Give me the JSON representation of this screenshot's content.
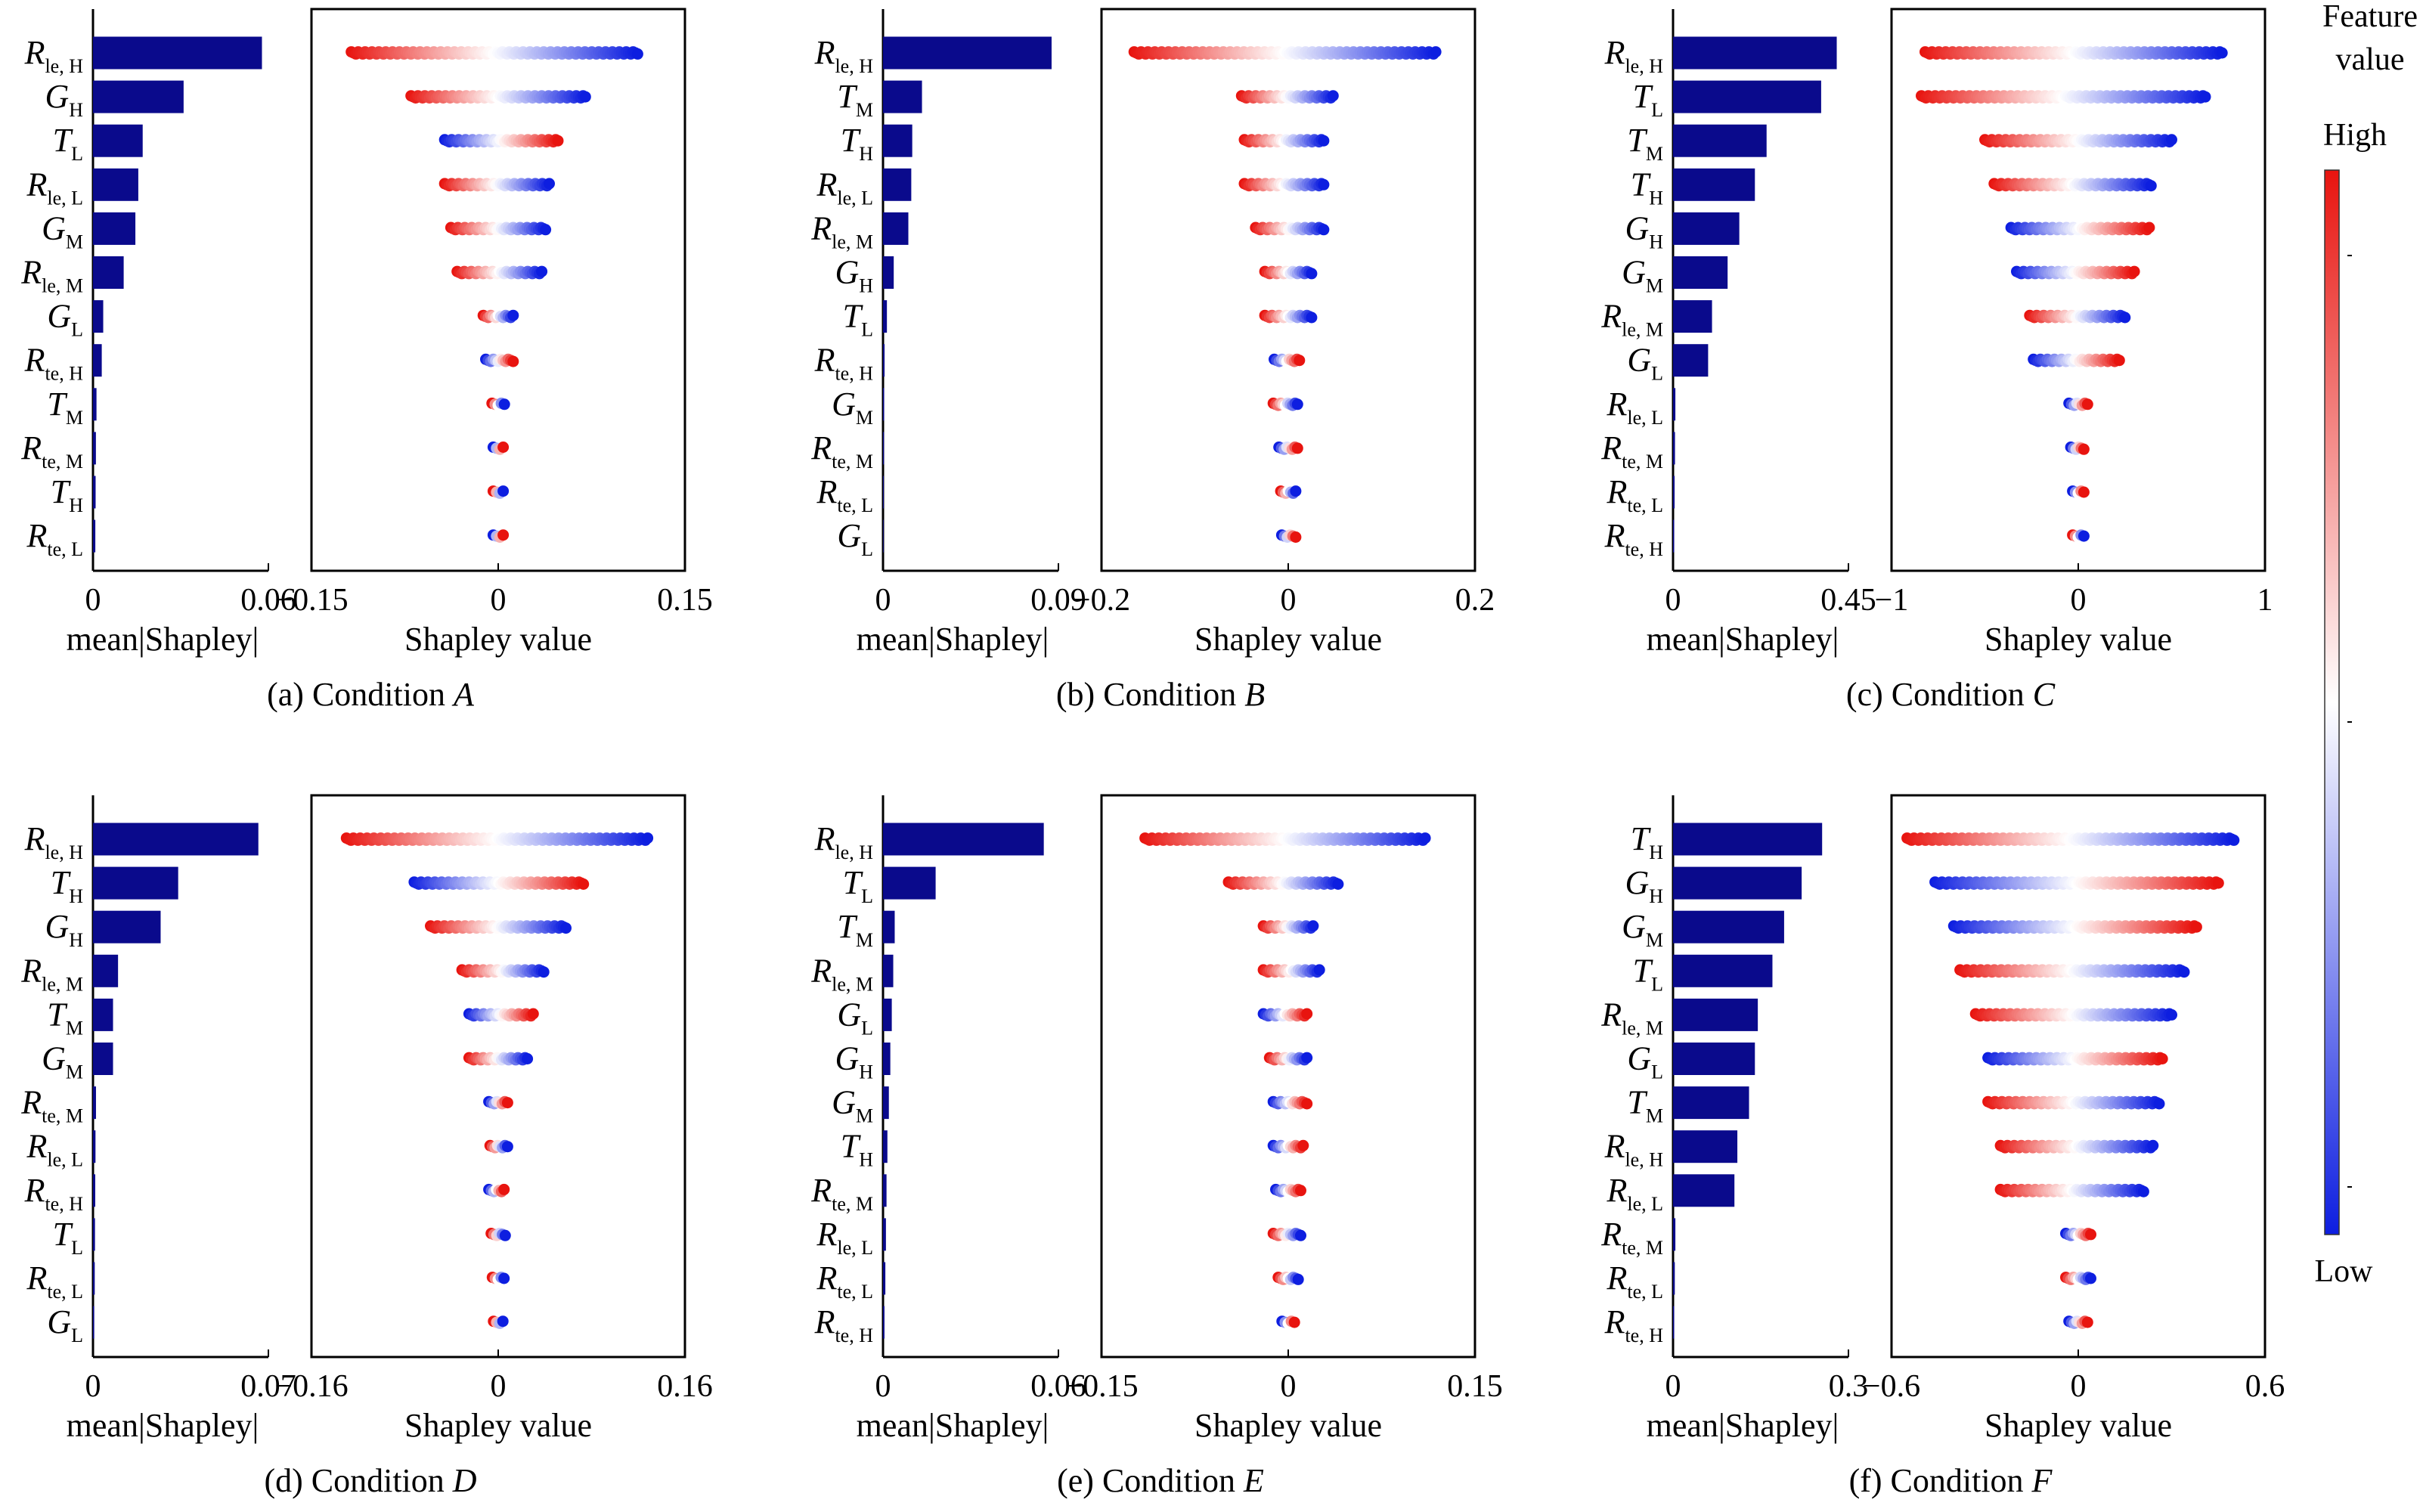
{
  "figure": {
    "colorbar": {
      "title_line1": "Feature",
      "title_line2": "value",
      "high_label": "High",
      "low_label": "Low",
      "high_color": "#e8140f",
      "mid_color": "#ffffff",
      "low_color": "#0d1ee0"
    },
    "bar_color": "#0a0a8c"
  },
  "chart_data": [
    {
      "type": "bar",
      "panel": "a",
      "caption_prefix": "(a) Condition ",
      "caption_letter": "A",
      "bar_xlabel": "mean|Shapley|",
      "bar_xlim": [
        0,
        0.06
      ],
      "bar_xticks": [
        "0",
        "0.06"
      ],
      "scatter_xlabel": "Shapley value",
      "scatter_xlim": [
        -0.15,
        0.15
      ],
      "scatter_xticks": [
        {
          "v": -0.15,
          "label": "−0.15"
        },
        {
          "v": 0,
          "label": "0"
        },
        {
          "v": 0.15,
          "label": "0.15"
        }
      ],
      "features": [
        {
          "base": "R",
          "sub": "le, H",
          "mean_abs": 0.0578,
          "range": [
            -0.118,
            0.112
          ],
          "order": "hl"
        },
        {
          "base": "G",
          "sub": "H",
          "mean_abs": 0.031,
          "range": [
            -0.07,
            0.07
          ],
          "order": "hl"
        },
        {
          "base": "T",
          "sub": "L",
          "mean_abs": 0.017,
          "range": [
            -0.043,
            0.048
          ],
          "order": "lh"
        },
        {
          "base": "R",
          "sub": "le, L",
          "mean_abs": 0.0155,
          "range": [
            -0.043,
            0.041
          ],
          "order": "hl"
        },
        {
          "base": "G",
          "sub": "M",
          "mean_abs": 0.0145,
          "range": [
            -0.038,
            0.038
          ],
          "order": "hl"
        },
        {
          "base": "R",
          "sub": "le, M",
          "mean_abs": 0.0105,
          "range": [
            -0.033,
            0.035
          ],
          "order": "hl"
        },
        {
          "base": "G",
          "sub": "L",
          "mean_abs": 0.0035,
          "range": [
            -0.012,
            0.012
          ],
          "order": "hl"
        },
        {
          "base": "R",
          "sub": "te, H",
          "mean_abs": 0.003,
          "range": [
            -0.01,
            0.012
          ],
          "order": "lh"
        },
        {
          "base": "T",
          "sub": "M",
          "mean_abs": 0.0012,
          "range": [
            -0.005,
            0.005
          ],
          "order": "hl"
        },
        {
          "base": "R",
          "sub": "te, M",
          "mean_abs": 0.001,
          "range": [
            -0.004,
            0.004
          ],
          "order": "lh"
        },
        {
          "base": "T",
          "sub": "H",
          "mean_abs": 0.0009,
          "range": [
            -0.004,
            0.004
          ],
          "order": "hl"
        },
        {
          "base": "R",
          "sub": "te, L",
          "mean_abs": 0.0008,
          "range": [
            -0.004,
            0.004
          ],
          "order": "lh"
        }
      ]
    },
    {
      "type": "bar",
      "panel": "b",
      "caption_prefix": "(b) Condition ",
      "caption_letter": "B",
      "bar_xlabel": "mean|Shapley|",
      "bar_xlim": [
        0,
        0.09
      ],
      "bar_xticks": [
        "0",
        "0.09"
      ],
      "scatter_xlabel": "Shapley value",
      "scatter_xlim": [
        -0.2,
        0.2
      ],
      "scatter_xticks": [
        {
          "v": -0.2,
          "label": "−0.2"
        },
        {
          "v": 0,
          "label": "0"
        },
        {
          "v": 0.2,
          "label": "0.2"
        }
      ],
      "features": [
        {
          "base": "R",
          "sub": "le, H",
          "mean_abs": 0.0865,
          "range": [
            -0.165,
            0.158
          ],
          "order": "hl"
        },
        {
          "base": "T",
          "sub": "M",
          "mean_abs": 0.02,
          "range": [
            -0.05,
            0.048
          ],
          "order": "hl"
        },
        {
          "base": "T",
          "sub": "H",
          "mean_abs": 0.015,
          "range": [
            -0.047,
            0.038
          ],
          "order": "hl"
        },
        {
          "base": "R",
          "sub": "le, L",
          "mean_abs": 0.0145,
          "range": [
            -0.047,
            0.038
          ],
          "order": "hl"
        },
        {
          "base": "R",
          "sub": "le, M",
          "mean_abs": 0.013,
          "range": [
            -0.035,
            0.038
          ],
          "order": "hl"
        },
        {
          "base": "G",
          "sub": "H",
          "mean_abs": 0.0055,
          "range": [
            -0.025,
            0.025
          ],
          "order": "hl"
        },
        {
          "base": "T",
          "sub": "L",
          "mean_abs": 0.002,
          "range": [
            -0.025,
            0.025
          ],
          "order": "hl"
        },
        {
          "base": "R",
          "sub": "te, H",
          "mean_abs": 0.0008,
          "range": [
            -0.015,
            0.012
          ],
          "order": "lh"
        },
        {
          "base": "G",
          "sub": "M",
          "mean_abs": 0.0006,
          "range": [
            -0.016,
            0.01
          ],
          "order": "hl"
        },
        {
          "base": "R",
          "sub": "te, M",
          "mean_abs": 0.0005,
          "range": [
            -0.01,
            0.01
          ],
          "order": "lh"
        },
        {
          "base": "R",
          "sub": "te, L",
          "mean_abs": 0.0004,
          "range": [
            -0.008,
            0.008
          ],
          "order": "hl"
        },
        {
          "base": "G",
          "sub": "L",
          "mean_abs": 0.0003,
          "range": [
            -0.007,
            0.008
          ],
          "order": "lh"
        }
      ]
    },
    {
      "type": "bar",
      "panel": "c",
      "caption_prefix": "(c) Condition ",
      "caption_letter": "C",
      "bar_xlabel": "mean|Shapley|",
      "bar_xlim": [
        0,
        0.45
      ],
      "bar_xticks": [
        "0",
        "0.45"
      ],
      "scatter_xlabel": "Shapley value",
      "scatter_xlim": [
        -1,
        1
      ],
      "scatter_xticks": [
        {
          "v": -1,
          "label": "−1"
        },
        {
          "v": 0,
          "label": "0"
        },
        {
          "v": 1,
          "label": "1"
        }
      ],
      "features": [
        {
          "base": "R",
          "sub": "le, H",
          "mean_abs": 0.42,
          "range": [
            -0.82,
            0.77
          ],
          "order": "hl"
        },
        {
          "base": "T",
          "sub": "L",
          "mean_abs": 0.38,
          "range": [
            -0.84,
            0.68
          ],
          "order": "hl"
        },
        {
          "base": "T",
          "sub": "M",
          "mean_abs": 0.24,
          "range": [
            -0.5,
            0.5
          ],
          "order": "hl"
        },
        {
          "base": "T",
          "sub": "H",
          "mean_abs": 0.21,
          "range": [
            -0.45,
            0.39
          ],
          "order": "hl"
        },
        {
          "base": "G",
          "sub": "H",
          "mean_abs": 0.17,
          "range": [
            -0.36,
            0.38
          ],
          "order": "lh"
        },
        {
          "base": "G",
          "sub": "M",
          "mean_abs": 0.14,
          "range": [
            -0.33,
            0.3
          ],
          "order": "lh"
        },
        {
          "base": "R",
          "sub": "le, M",
          "mean_abs": 0.1,
          "range": [
            -0.26,
            0.25
          ],
          "order": "hl"
        },
        {
          "base": "G",
          "sub": "L",
          "mean_abs": 0.09,
          "range": [
            -0.24,
            0.22
          ],
          "order": "lh"
        },
        {
          "base": "R",
          "sub": "le, L",
          "mean_abs": 0.006,
          "range": [
            -0.05,
            0.05
          ],
          "order": "lh"
        },
        {
          "base": "R",
          "sub": "te, M",
          "mean_abs": 0.005,
          "range": [
            -0.04,
            0.03
          ],
          "order": "lh"
        },
        {
          "base": "R",
          "sub": "te, L",
          "mean_abs": 0.004,
          "range": [
            -0.03,
            0.03
          ],
          "order": "lh"
        },
        {
          "base": "R",
          "sub": "te, H",
          "mean_abs": 0.003,
          "range": [
            -0.03,
            0.03
          ],
          "order": "hl"
        }
      ]
    },
    {
      "type": "bar",
      "panel": "d",
      "caption_prefix": "(d) Condition ",
      "caption_letter": "D",
      "bar_xlabel": "mean|Shapley|",
      "bar_xlim": [
        0,
        0.07
      ],
      "bar_xticks": [
        "0",
        "0.07"
      ],
      "scatter_xlabel": "Shapley value",
      "scatter_xlim": [
        -0.16,
        0.16
      ],
      "scatter_xticks": [
        {
          "v": -0.16,
          "label": "−0.16"
        },
        {
          "v": 0,
          "label": "0"
        },
        {
          "v": 0.16,
          "label": "0.16"
        }
      ],
      "features": [
        {
          "base": "R",
          "sub": "le, H",
          "mean_abs": 0.066,
          "range": [
            -0.13,
            0.128
          ],
          "order": "hl"
        },
        {
          "base": "T",
          "sub": "H",
          "mean_abs": 0.034,
          "range": [
            -0.072,
            0.073
          ],
          "order": "lh"
        },
        {
          "base": "G",
          "sub": "H",
          "mean_abs": 0.027,
          "range": [
            -0.058,
            0.058
          ],
          "order": "hl"
        },
        {
          "base": "R",
          "sub": "le, M",
          "mean_abs": 0.01,
          "range": [
            -0.031,
            0.039
          ],
          "order": "hl"
        },
        {
          "base": "T",
          "sub": "M",
          "mean_abs": 0.008,
          "range": [
            -0.025,
            0.03
          ],
          "order": "lh"
        },
        {
          "base": "G",
          "sub": "M",
          "mean_abs": 0.008,
          "range": [
            -0.025,
            0.025
          ],
          "order": "hl"
        },
        {
          "base": "R",
          "sub": "te, M",
          "mean_abs": 0.0012,
          "range": [
            -0.008,
            0.008
          ],
          "order": "lh"
        },
        {
          "base": "R",
          "sub": "le, L",
          "mean_abs": 0.001,
          "range": [
            -0.007,
            0.008
          ],
          "order": "hl"
        },
        {
          "base": "R",
          "sub": "te, H",
          "mean_abs": 0.0009,
          "range": [
            -0.008,
            0.005
          ],
          "order": "lh"
        },
        {
          "base": "T",
          "sub": "L",
          "mean_abs": 0.0008,
          "range": [
            -0.006,
            0.006
          ],
          "order": "hl"
        },
        {
          "base": "R",
          "sub": "te, L",
          "mean_abs": 0.0007,
          "range": [
            -0.005,
            0.005
          ],
          "order": "hl"
        },
        {
          "base": "G",
          "sub": "L",
          "mean_abs": 0.0005,
          "range": [
            -0.004,
            0.004
          ],
          "order": "hl"
        }
      ]
    },
    {
      "type": "bar",
      "panel": "e",
      "caption_prefix": "(e) Condition ",
      "caption_letter": "E",
      "bar_xlabel": "mean|Shapley|",
      "bar_xlim": [
        0,
        0.06
      ],
      "bar_xticks": [
        "0",
        "0.06"
      ],
      "scatter_xlabel": "Shapley value",
      "scatter_xlim": [
        -0.15,
        0.15
      ],
      "scatter_xticks": [
        {
          "v": -0.15,
          "label": "−0.15"
        },
        {
          "v": 0,
          "label": "0"
        },
        {
          "v": 0.15,
          "label": "0.15"
        }
      ],
      "features": [
        {
          "base": "R",
          "sub": "le, H",
          "mean_abs": 0.055,
          "range": [
            -0.115,
            0.11
          ],
          "order": "hl"
        },
        {
          "base": "T",
          "sub": "L",
          "mean_abs": 0.018,
          "range": [
            -0.048,
            0.04
          ],
          "order": "hl"
        },
        {
          "base": "T",
          "sub": "M",
          "mean_abs": 0.004,
          "range": [
            -0.02,
            0.02
          ],
          "order": "hl"
        },
        {
          "base": "R",
          "sub": "le, M",
          "mean_abs": 0.0035,
          "range": [
            -0.02,
            0.025
          ],
          "order": "hl"
        },
        {
          "base": "G",
          "sub": "L",
          "mean_abs": 0.003,
          "range": [
            -0.02,
            0.015
          ],
          "order": "lh"
        },
        {
          "base": "G",
          "sub": "H",
          "mean_abs": 0.0025,
          "range": [
            -0.015,
            0.015
          ],
          "order": "hl"
        },
        {
          "base": "G",
          "sub": "M",
          "mean_abs": 0.002,
          "range": [
            -0.012,
            0.015
          ],
          "order": "lh"
        },
        {
          "base": "T",
          "sub": "H",
          "mean_abs": 0.0015,
          "range": [
            -0.012,
            0.012
          ],
          "order": "lh"
        },
        {
          "base": "R",
          "sub": "te, M",
          "mean_abs": 0.0012,
          "range": [
            -0.01,
            0.01
          ],
          "order": "lh"
        },
        {
          "base": "R",
          "sub": "le, L",
          "mean_abs": 0.001,
          "range": [
            -0.012,
            0.01
          ],
          "order": "hl"
        },
        {
          "base": "R",
          "sub": "te, L",
          "mean_abs": 0.0008,
          "range": [
            -0.008,
            0.008
          ],
          "order": "hl"
        },
        {
          "base": "R",
          "sub": "te, H",
          "mean_abs": 0.0005,
          "range": [
            -0.005,
            0.005
          ],
          "order": "lh"
        }
      ]
    },
    {
      "type": "bar",
      "panel": "f",
      "caption_prefix": "(f) Condition ",
      "caption_letter": "F",
      "bar_xlabel": "mean|Shapley|",
      "bar_xlim": [
        0,
        0.3
      ],
      "bar_xticks": [
        "0",
        "0.3"
      ],
      "scatter_xlabel": "Shapley value",
      "scatter_xlim": [
        -0.6,
        0.6
      ],
      "scatter_xticks": [
        {
          "v": -0.6,
          "label": "−0.6"
        },
        {
          "v": 0,
          "label": "0"
        },
        {
          "v": 0.6,
          "label": "0.6"
        }
      ],
      "features": [
        {
          "base": "T",
          "sub": "H",
          "mean_abs": 0.255,
          "range": [
            -0.55,
            0.5
          ],
          "order": "hl"
        },
        {
          "base": "G",
          "sub": "H",
          "mean_abs": 0.22,
          "range": [
            -0.46,
            0.45
          ],
          "order": "lh"
        },
        {
          "base": "G",
          "sub": "M",
          "mean_abs": 0.19,
          "range": [
            -0.4,
            0.38
          ],
          "order": "lh"
        },
        {
          "base": "T",
          "sub": "L",
          "mean_abs": 0.17,
          "range": [
            -0.38,
            0.34
          ],
          "order": "hl"
        },
        {
          "base": "R",
          "sub": "le, M",
          "mean_abs": 0.145,
          "range": [
            -0.33,
            0.3
          ],
          "order": "hl"
        },
        {
          "base": "G",
          "sub": "L",
          "mean_abs": 0.14,
          "range": [
            -0.29,
            0.27
          ],
          "order": "lh"
        },
        {
          "base": "T",
          "sub": "M",
          "mean_abs": 0.13,
          "range": [
            -0.29,
            0.26
          ],
          "order": "hl"
        },
        {
          "base": "R",
          "sub": "le, H",
          "mean_abs": 0.11,
          "range": [
            -0.25,
            0.24
          ],
          "order": "hl"
        },
        {
          "base": "R",
          "sub": "le, L",
          "mean_abs": 0.105,
          "range": [
            -0.25,
            0.21
          ],
          "order": "hl"
        },
        {
          "base": "R",
          "sub": "te, M",
          "mean_abs": 0.004,
          "range": [
            -0.04,
            0.04
          ],
          "order": "lh"
        },
        {
          "base": "R",
          "sub": "te, L",
          "mean_abs": 0.003,
          "range": [
            -0.04,
            0.04
          ],
          "order": "hl"
        },
        {
          "base": "R",
          "sub": "te, H",
          "mean_abs": 0.002,
          "range": [
            -0.03,
            0.03
          ],
          "order": "lh"
        }
      ]
    }
  ]
}
